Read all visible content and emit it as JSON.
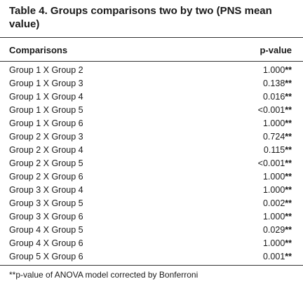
{
  "title": "Table 4. Groups comparisons two by two (PNS mean value)",
  "columns": {
    "comparison": "Comparisons",
    "pvalue": "p-value"
  },
  "rows": [
    {
      "comparison": "Group 1 X Group 2",
      "pvalue": "1.000",
      "marker": "**"
    },
    {
      "comparison": "Group 1 X Group 3",
      "pvalue": "0.138",
      "marker": "**"
    },
    {
      "comparison": "Group 1 X Group 4",
      "pvalue": "0.016",
      "marker": "**"
    },
    {
      "comparison": "Group 1 X Group 5",
      "pvalue": "<0.001",
      "marker": "**"
    },
    {
      "comparison": "Group 1 X Group 6",
      "pvalue": "1.000",
      "marker": "**"
    },
    {
      "comparison": "Group 2 X Group 3",
      "pvalue": "0.724",
      "marker": "**"
    },
    {
      "comparison": "Group 2 X Group 4",
      "pvalue": "0.115",
      "marker": "**"
    },
    {
      "comparison": "Group 2 X Group 5",
      "pvalue": "<0.001",
      "marker": "**"
    },
    {
      "comparison": "Group 2 X Group 6",
      "pvalue": "1.000",
      "marker": "**"
    },
    {
      "comparison": "Group 3 X Group 4",
      "pvalue": "1.000",
      "marker": "**"
    },
    {
      "comparison": "Group 3 X Group 5",
      "pvalue": "0.002",
      "marker": "**"
    },
    {
      "comparison": "Group 3 X Group 6",
      "pvalue": "1.000",
      "marker": "**"
    },
    {
      "comparison": "Group 4 X Group 5",
      "pvalue": "0.029",
      "marker": "**"
    },
    {
      "comparison": "Group 4 X Group 6",
      "pvalue": "1.000",
      "marker": "**"
    },
    {
      "comparison": "Group 5 X Group 6",
      "pvalue": "0.001",
      "marker": "**"
    }
  ],
  "footnote": "**p-value of ANOVA model corrected by Bonferroni"
}
